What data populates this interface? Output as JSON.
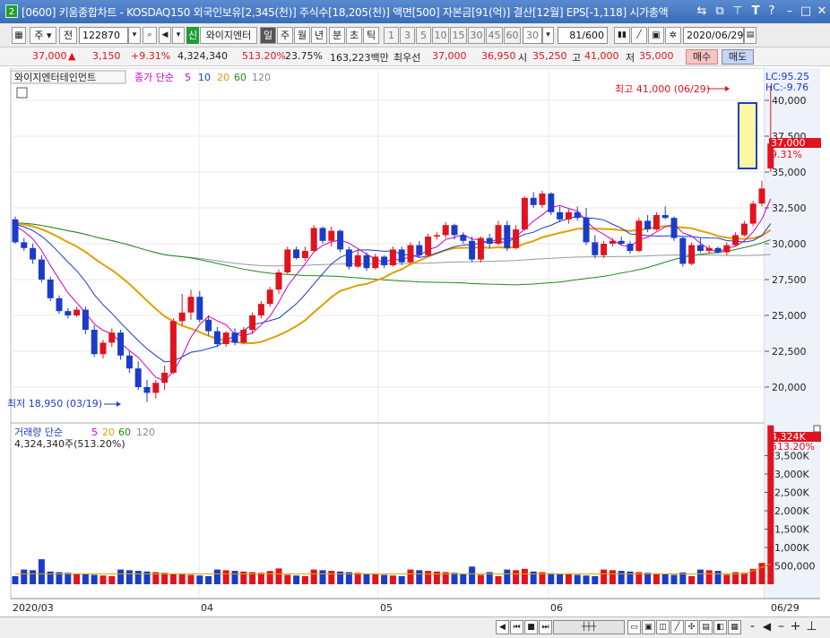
{
  "window": {
    "number": "2",
    "title": "[0600] 키움종합차트 - KOSDAQ150 외국인보유[2,345(천)] 주식수[18,205(천)] 액면[500] 자본금[91(억)] 결산[12월] EPS[-1,118] 시가총액"
  },
  "toolbar": {
    "period": "주",
    "jeon": "전",
    "code": "122870",
    "sin": "신",
    "stock_name": "와이지엔터",
    "il": "일",
    "ju": "주",
    "wol": "월",
    "nyeon": "년",
    "bun": "분",
    "cho": "초",
    "tik": "틱",
    "intervals": [
      "1",
      "3",
      "5",
      "10",
      "15",
      "30",
      "45",
      "60"
    ],
    "interval_value": "30",
    "count": "81/600",
    "date": "2020/06/29"
  },
  "price": {
    "current": "37,000",
    "arrow": "▲",
    "change": "3,150",
    "change_pct": "+9.31%",
    "volume": "4,324,340",
    "volume_pct": "513.20%",
    "turnover": "23.75%",
    "amount": "163,223백만",
    "priority_label": "최우선",
    "ask": "37,000",
    "bid": "36,950",
    "open_label": "시",
    "open": "35,250",
    "high_label": "고",
    "high": "41,000",
    "low_label": "저",
    "low": "35,000",
    "buy_btn": "매수",
    "sell_btn": "매도"
  },
  "chart": {
    "legend_name": "와이지엔터테인먼트",
    "legend_price": "종가 단순",
    "ma": [
      "5",
      "10",
      "20",
      "60",
      "120"
    ],
    "lc_label": "LC:95.25",
    "hc_label": "HC:-9.76",
    "price_ticks": [
      "40,000",
      "37,500",
      "35,000",
      "32,500",
      "30,000",
      "27,500",
      "25,000",
      "22,500",
      "20,000"
    ],
    "current_label": "37,000",
    "current_pct": "9.31%",
    "high_annot": "최고 41,000 (06/29)",
    "low_annot": "최저 18,950 (03/19)",
    "vol_legend": "거래량 단순",
    "vol_ma": [
      "5",
      "20",
      "60",
      "120"
    ],
    "vol_value": "4,324,340주(513.20%)",
    "vol_ticks": [
      "3,500K",
      "3,000K",
      "2,500K",
      "2,000K",
      "1,500K",
      "1,000K",
      "500,000"
    ],
    "vol_current": "4,324K",
    "vol_current_pct": "513.20%",
    "x_labels": [
      "2020/03",
      "04",
      "05",
      "06",
      "06/29"
    ]
  },
  "chart_data": {
    "type": "candlestick",
    "ylim": [
      18000,
      42000
    ],
    "candles": [
      [
        31700,
        31900,
        30000,
        30100
      ],
      [
        30100,
        30400,
        29500,
        29700
      ],
      [
        29700,
        30000,
        28600,
        28900
      ],
      [
        28900,
        29200,
        27300,
        27500
      ],
      [
        27500,
        27700,
        26000,
        26200
      ],
      [
        26200,
        26400,
        25100,
        25300
      ],
      [
        25300,
        25500,
        24800,
        25000
      ],
      [
        25000,
        25600,
        24900,
        25400
      ],
      [
        25400,
        25600,
        23700,
        24000
      ],
      [
        24000,
        24300,
        22100,
        22300
      ],
      [
        22300,
        23300,
        22000,
        23100
      ],
      [
        23100,
        24100,
        22800,
        23800
      ],
      [
        23800,
        24000,
        21900,
        22200
      ],
      [
        22200,
        22500,
        21000,
        21300
      ],
      [
        21300,
        21800,
        19800,
        20000
      ],
      [
        20000,
        20500,
        18950,
        19600
      ],
      [
        19600,
        20500,
        19200,
        20300
      ],
      [
        20300,
        21500,
        19800,
        21000
      ],
      [
        21000,
        24800,
        20900,
        24600
      ],
      [
        24600,
        26500,
        24300,
        25200
      ],
      [
        25200,
        26800,
        24700,
        26300
      ],
      [
        26300,
        26700,
        24500,
        24700
      ],
      [
        24700,
        25000,
        23600,
        23900
      ],
      [
        23900,
        24200,
        22800,
        23000
      ],
      [
        23000,
        23900,
        22800,
        23800
      ],
      [
        23800,
        24100,
        22900,
        23100
      ],
      [
        23100,
        24200,
        23000,
        24000
      ],
      [
        24000,
        25200,
        23700,
        25000
      ],
      [
        25000,
        26000,
        24800,
        25800
      ],
      [
        25800,
        27000,
        25600,
        26800
      ],
      [
        26800,
        28200,
        26500,
        28000
      ],
      [
        28000,
        29800,
        27900,
        29600
      ],
      [
        29600,
        29800,
        28900,
        29000
      ],
      [
        29000,
        29800,
        28800,
        29500
      ],
      [
        29500,
        31300,
        29400,
        31100
      ],
      [
        31100,
        31200,
        30000,
        30200
      ],
      [
        30200,
        31200,
        29800,
        30900
      ],
      [
        30900,
        31000,
        29400,
        29600
      ],
      [
        29600,
        29800,
        28200,
        28400
      ],
      [
        28400,
        29600,
        28300,
        29200
      ],
      [
        29200,
        29400,
        28100,
        28300
      ],
      [
        28300,
        29300,
        28200,
        29100
      ],
      [
        29100,
        29200,
        28300,
        28500
      ],
      [
        28500,
        29800,
        28400,
        29600
      ],
      [
        29600,
        29800,
        28500,
        28700
      ],
      [
        28700,
        30100,
        28600,
        29900
      ],
      [
        29900,
        30200,
        29000,
        29200
      ],
      [
        29200,
        30700,
        29100,
        30500
      ],
      [
        30500,
        30800,
        30300,
        30600
      ],
      [
        30600,
        31500,
        30400,
        31300
      ],
      [
        31300,
        31400,
        30300,
        30600
      ],
      [
        30600,
        30800,
        30000,
        30200
      ],
      [
        30200,
        30500,
        28700,
        28900
      ],
      [
        28900,
        30500,
        28700,
        30400
      ],
      [
        30400,
        30700,
        29700,
        30000
      ],
      [
        30000,
        31600,
        29900,
        31300
      ],
      [
        31300,
        31600,
        29500,
        29700
      ],
      [
        29700,
        31300,
        29600,
        31000
      ],
      [
        31000,
        33300,
        30900,
        33200
      ],
      [
        33200,
        33600,
        32500,
        32700
      ],
      [
        32700,
        33700,
        32500,
        33500
      ],
      [
        33500,
        33600,
        32000,
        32200
      ],
      [
        32200,
        32600,
        31500,
        31700
      ],
      [
        31700,
        32400,
        31400,
        32200
      ],
      [
        32200,
        32600,
        31600,
        31800
      ],
      [
        31800,
        32500,
        29900,
        30100
      ],
      [
        30100,
        30600,
        29000,
        29200
      ],
      [
        29200,
        30200,
        29000,
        30000
      ],
      [
        30000,
        30400,
        29800,
        30200
      ],
      [
        30200,
        30500,
        29900,
        30000
      ],
      [
        30000,
        30200,
        29300,
        29500
      ],
      [
        29500,
        31800,
        29400,
        31600
      ],
      [
        31600,
        32000,
        30800,
        31000
      ],
      [
        31000,
        32200,
        30900,
        32000
      ],
      [
        32000,
        32600,
        31700,
        31800
      ],
      [
        31800,
        31900,
        30200,
        30400
      ],
      [
        30400,
        30500,
        28400,
        28600
      ],
      [
        28600,
        30100,
        28500,
        29900
      ],
      [
        29900,
        30400,
        29400,
        29500
      ],
      [
        29500,
        29900,
        29300,
        29700
      ],
      [
        29700,
        29800,
        29300,
        29400
      ],
      [
        29400,
        30100,
        29200,
        29900
      ],
      [
        29900,
        30800,
        29800,
        30600
      ],
      [
        30600,
        31600,
        30500,
        31400
      ],
      [
        31400,
        33000,
        31200,
        32800
      ],
      [
        32800,
        34400,
        32600,
        33850
      ],
      [
        35250,
        41000,
        35000,
        37000
      ]
    ]
  }
}
